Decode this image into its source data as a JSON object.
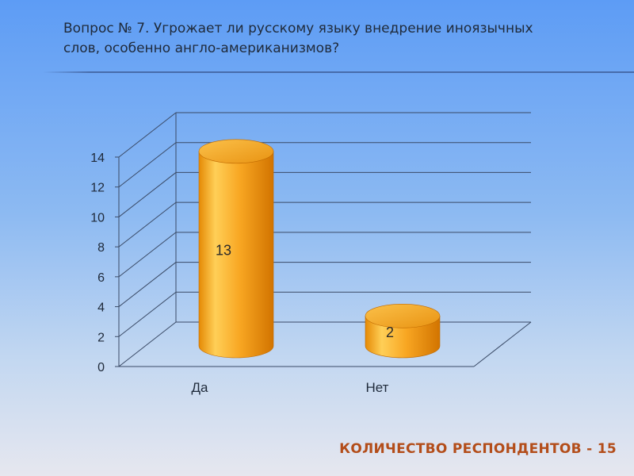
{
  "slide": {
    "title_line1": "Вопрос № 7. Угрожает ли русскому языку внедрение иноязычных",
    "title_line2": "слов, особенно англо-американизмов?",
    "footer": "КОЛИЧЕСТВО РЕСПОНДЕНТОВ - 15"
  },
  "colors": {
    "bar_light": "#ffce55",
    "bar_mid": "#f7a11e",
    "bar_dark": "#d97b00",
    "bar_top": "#f5b43a",
    "grid": "#3a4a66",
    "text": "#1f2a3a",
    "footer": "#b34d1a"
  },
  "chart_data": {
    "type": "bar",
    "style": "3d-cylinder",
    "categories": [
      "Да",
      "Нет"
    ],
    "values": [
      13,
      2
    ],
    "data_labels": [
      "13",
      "2"
    ],
    "ylim": [
      0,
      14
    ],
    "yticks": [
      "0",
      "2",
      "4",
      "6",
      "8",
      "10",
      "12",
      "14"
    ],
    "grid": true,
    "legend": "none"
  }
}
